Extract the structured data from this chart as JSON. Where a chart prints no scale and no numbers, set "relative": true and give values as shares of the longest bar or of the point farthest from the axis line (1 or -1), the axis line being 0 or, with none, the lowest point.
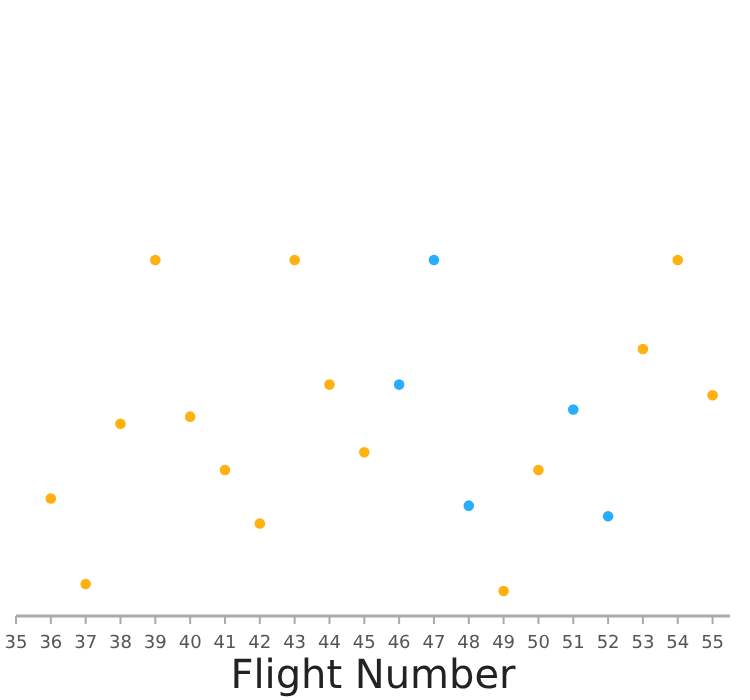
{
  "chart_data": {
    "type": "scatter",
    "xlabel": "Flight Number",
    "relative": true,
    "xlim": [
      35,
      55.5
    ],
    "xticks": [
      35,
      36,
      37,
      38,
      39,
      40,
      41,
      42,
      43,
      44,
      45,
      46,
      47,
      48,
      49,
      50,
      51,
      52,
      53,
      54,
      55
    ],
    "marker": "circle",
    "series": [
      {
        "color": "#ffb20f",
        "x": [
          36,
          37,
          38,
          39,
          40,
          41,
          42,
          43,
          44,
          45,
          49,
          50,
          53,
          54,
          55
        ],
        "values": [
          0.33,
          0.09,
          0.54,
          1,
          0.56,
          0.41,
          0.26,
          1,
          0.65,
          0.46,
          0.07,
          0.41,
          0.75,
          1,
          0.62
        ]
      },
      {
        "color": "#29adff",
        "x": [
          46,
          47,
          48,
          51,
          52
        ],
        "values": [
          0.65,
          1,
          0.31,
          0.58,
          0.28
        ]
      }
    ]
  }
}
